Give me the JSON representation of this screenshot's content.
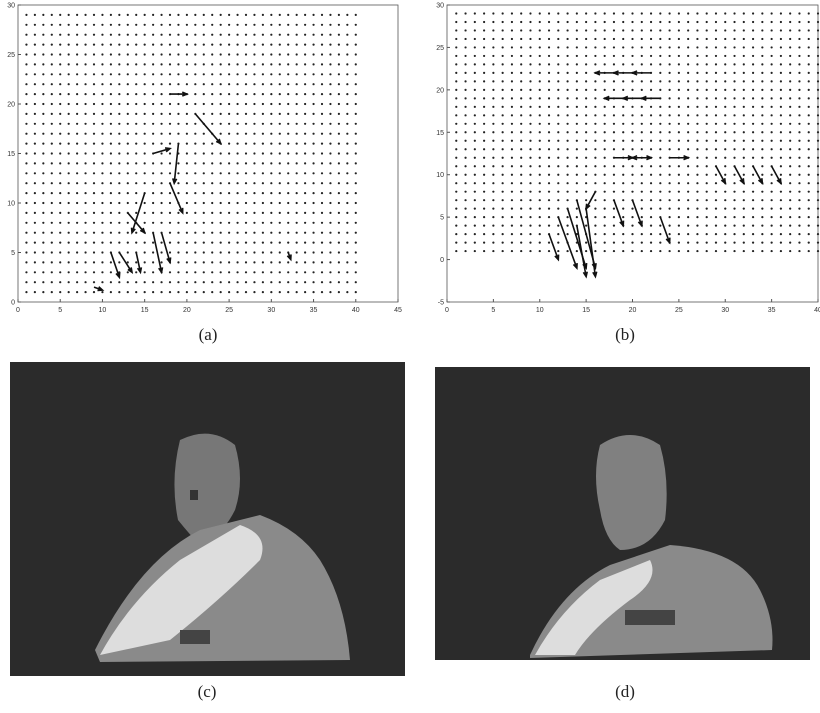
{
  "charts": [
    {
      "type": "quiver",
      "label": "(a)",
      "xlim": [
        0,
        45
      ],
      "ylim": [
        0,
        30
      ],
      "xticks": [
        0,
        5,
        10,
        15,
        20,
        25,
        30,
        35,
        40,
        45
      ],
      "yticks": [
        0,
        5,
        10,
        15,
        20,
        25,
        30
      ],
      "x": [
        21,
        19,
        18,
        13,
        15,
        16,
        17,
        12,
        14,
        11,
        9,
        32,
        16,
        18
      ],
      "y": [
        19,
        16,
        12,
        9,
        11,
        7,
        7,
        5,
        5,
        5,
        1.5,
        5,
        15,
        21
      ],
      "u": [
        3,
        -0.5,
        1.5,
        2,
        -1.5,
        1,
        1,
        1.5,
        0.5,
        1,
        1,
        0.3,
        2,
        2
      ],
      "v": [
        -3,
        -4,
        -3,
        -2,
        -4,
        -4,
        -3,
        -2,
        -2,
        -2.5,
        -0.3,
        -0.7,
        0.5,
        0
      ]
    },
    {
      "type": "quiver",
      "label": "(b)",
      "xlim": [
        0,
        40
      ],
      "ylim": [
        -5,
        30
      ],
      "xticks": [
        0,
        5,
        10,
        15,
        20,
        25,
        30,
        35,
        40
      ],
      "yticks": [
        -5,
        0,
        5,
        10,
        15,
        20,
        25,
        30
      ],
      "x": [
        11,
        12,
        13,
        14,
        15,
        14,
        16,
        18,
        20,
        22,
        19,
        21,
        23,
        18,
        20,
        22,
        24,
        29,
        31,
        33,
        35,
        18,
        20,
        23
      ],
      "y": [
        3,
        5,
        6,
        7,
        6,
        4,
        8,
        22,
        22,
        22,
        19,
        19,
        19,
        12,
        12,
        12,
        12,
        11,
        11,
        11,
        11,
        7,
        7,
        5
      ],
      "u": [
        1,
        2,
        2,
        2,
        1,
        1,
        -1,
        -2,
        -2,
        -2,
        -2,
        -2,
        -2,
        2,
        2,
        -2,
        2,
        1,
        1,
        1,
        1,
        1,
        1,
        1
      ],
      "v": [
        -3,
        -6,
        -7,
        -8,
        -8,
        -6,
        -2,
        0,
        0,
        0,
        0,
        0,
        0,
        0,
        0,
        0,
        0,
        -2,
        -2,
        -2,
        -2,
        -3,
        -3,
        -3
      ]
    },
    {
      "type": "image",
      "label": "(c)"
    },
    {
      "type": "image",
      "label": "(d)"
    }
  ]
}
